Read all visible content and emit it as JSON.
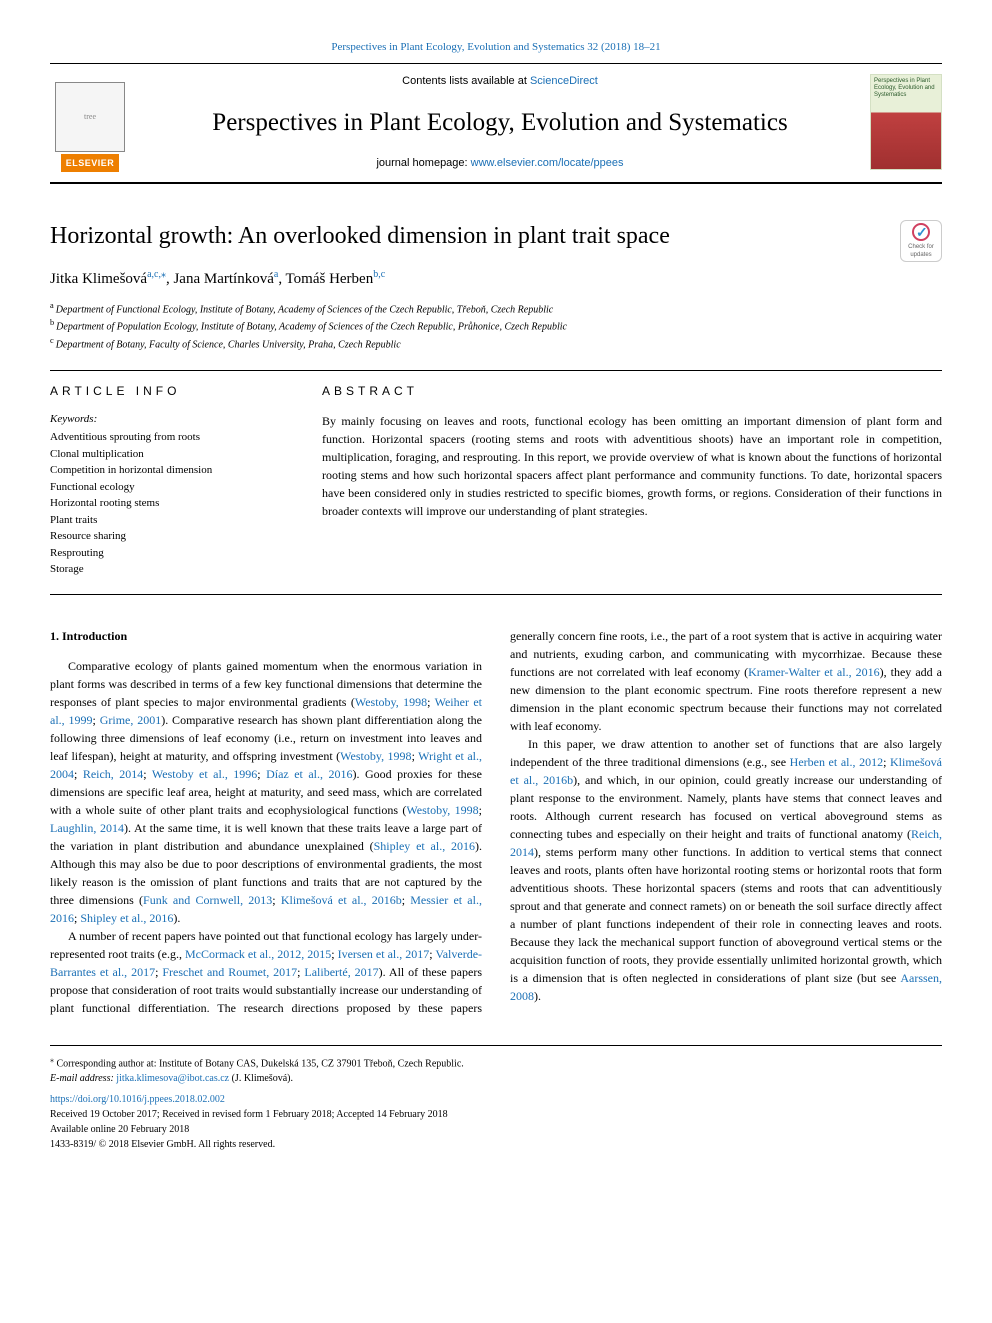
{
  "header_link": {
    "journal_issue": "Perspectives in Plant Ecology, Evolution and Systematics 32 (2018) 18–21"
  },
  "masthead": {
    "contents_prefix": "Contents lists available at ",
    "contents_link": "ScienceDirect",
    "journal_name": "Perspectives in Plant Ecology, Evolution and Systematics",
    "homepage_prefix": "journal homepage: ",
    "homepage_link": "www.elsevier.com/locate/ppees",
    "elsevier_label": "ELSEVIER",
    "cover_text": "Perspectives in Plant Ecology, Evolution and Systematics"
  },
  "article": {
    "title": "Horizontal growth: An overlooked dimension in plant trait space",
    "authors_html": "Jitka Klimešová",
    "author1": "Jitka Klimešová",
    "author1_sup": "a,c,",
    "author1_star": "⁎",
    "author2": ", Jana Martínková",
    "author2_sup": "a",
    "author3": ", Tomáš Herben",
    "author3_sup": "b,c",
    "affiliations": [
      {
        "sup": "a",
        "text": "Department of Functional Ecology, Institute of Botany, Academy of Sciences of the Czech Republic, Třeboň, Czech Republic"
      },
      {
        "sup": "b",
        "text": "Department of Population Ecology, Institute of Botany, Academy of Sciences of the Czech Republic, Průhonice, Czech Republic"
      },
      {
        "sup": "c",
        "text": "Department of Botany, Faculty of Science, Charles University, Praha, Czech Republic"
      }
    ],
    "crossmark_label": "Check for updates"
  },
  "info": {
    "heading": "ARTICLE INFO",
    "keywords_label": "Keywords:",
    "keywords": [
      "Adventitious sprouting from roots",
      "Clonal multiplication",
      "Competition in horizontal dimension",
      "Functional ecology",
      "Horizontal rooting stems",
      "Plant traits",
      "Resource sharing",
      "Resprouting",
      "Storage"
    ]
  },
  "abstract": {
    "heading": "ABSTRACT",
    "text": "By mainly focusing on leaves and roots, functional ecology has been omitting an important dimension of plant form and function. Horizontal spacers (rooting stems and roots with adventitious shoots) have an important role in competition, multiplication, foraging, and resprouting. In this report, we provide overview of what is known about the functions of horizontal rooting stems and how such horizontal spacers affect plant performance and community functions. To date, horizontal spacers have been considered only in studies restricted to specific biomes, growth forms, or regions. Consideration of their functions in broader contexts will improve our understanding of plant strategies."
  },
  "body": {
    "heading": "1. Introduction",
    "p1a": "Comparative ecology of plants gained momentum when the enormous variation in plant forms was described in terms of a few key functional dimensions that determine the responses of plant species to major environmental gradients (",
    "p1_ref1": "Westoby, 1998",
    "p1b": "; ",
    "p1_ref2": "Weiher et al., 1999",
    "p1c": "; ",
    "p1_ref3": "Grime, 2001",
    "p1d": "). Comparative research has shown plant differentiation along the following three dimensions of leaf economy (i.e., return on investment into leaves and leaf lifespan), height at maturity, and offspring investment (",
    "p1_ref4": "Westoby, 1998",
    "p1e": "; ",
    "p1_ref5": "Wright et al., 2004",
    "p1f": "; ",
    "p1_ref6": "Reich, 2014",
    "p1g": "; ",
    "p1_ref7": "Westoby et al., 1996",
    "p1h": "; ",
    "p1_ref8": "Díaz et al., 2016",
    "p1i": "). Good proxies for these dimensions are specific leaf area, height at maturity, and seed mass, which are correlated with a whole suite of other plant traits and ecophysiological functions (",
    "p1_ref9": "Westoby, 1998",
    "p1j": "; ",
    "p1_ref10": "Laughlin, 2014",
    "p1k": "). At the same time, it is well known that these traits leave a large part of the variation in plant distribution and abundance unexplained (",
    "p1_ref11": "Shipley et al., 2016",
    "p1l": "). Although this may also be due to poor descriptions of environmental gradients, the most likely reason is the omission of plant functions and traits that are not captured by the three dimensions (",
    "p1_ref12": "Funk and Cornwell, 2013",
    "p1m": "; ",
    "p1_ref13": "Klimešová et al., 2016b",
    "p1n": "; ",
    "p1_ref14": "Messier et al., 2016",
    "p1o": "; ",
    "p1_ref15": "Shipley et al., 2016",
    "p1p": ").",
    "p2a": "A number of recent papers have pointed out that functional ecology has largely under-represented root traits (e.g., ",
    "p2_ref1": "McCormack et al., 2012, 2015",
    "p2b": "; ",
    "p2_ref2": "Iversen et al., 2017",
    "p2c": "; ",
    "p2_ref3": "Valverde-Barrantes et al., 2017",
    "p2d": "; ",
    "p2_ref4": "Freschet and Roumet, 2017",
    "p2e": "; ",
    "p2_ref5": "Laliberté, 2017",
    "p2f": "). All of these papers propose that consideration of root traits would substantially increase our understanding of plant functional differentiation. The research directions proposed by these papers generally concern fine roots, i.e., the part of a root system that is active in acquiring water and nutrients, exuding carbon, and communicating with mycorrhizae. Because these functions are not correlated with leaf economy (",
    "p2_ref6": "Kramer-Walter et al., 2016",
    "p2g": "), they add a new dimension to the plant economic spectrum. Fine roots therefore represent a new dimension in the plant economic spectrum because their functions may not correlated with leaf economy.",
    "p3a": "In this paper, we draw attention to another set of functions that are also largely independent of the three traditional dimensions (e.g., see ",
    "p3_ref1": "Herben et al., 2012",
    "p3b": "; ",
    "p3_ref2": "Klimešová et al., 2016b",
    "p3c": "), and which, in our opinion, could greatly increase our understanding of plant response to the environment. Namely, plants have stems that connect leaves and roots. Although current research has focused on vertical aboveground stems as connecting tubes and especially on their height and traits of functional anatomy (",
    "p3_ref3": "Reich, 2014",
    "p3d": "), stems perform many other functions. In addition to vertical stems that connect leaves and roots, plants often have horizontal rooting stems or horizontal roots that form adventitious shoots. These horizontal spacers (stems and roots that can adventitiously sprout and that generate and connect ramets) on or beneath the soil surface directly affect a number of plant functions independent of their role in connecting leaves and roots. Because they lack the mechanical support function of aboveground vertical stems or the acquisition function of roots, they provide essentially unlimited horizontal growth, which is a dimension that is often neglected in considerations of plant size (but see ",
    "p3_ref4": "Aarssen, 2008",
    "p3e": ")."
  },
  "footer": {
    "corr_star": "⁎",
    "corr_text": " Corresponding author at: Institute of Botany CAS, Dukelská 135, CZ 37901 Třeboň, Czech Republic.",
    "email_label": "E-mail address: ",
    "email": "jitka.klimesova@ibot.cas.cz",
    "email_suffix": " (J. Klimešová).",
    "doi": "https://doi.org/10.1016/j.ppees.2018.02.002",
    "received": "Received 19 October 2017; Received in revised form 1 February 2018; Accepted 14 February 2018",
    "available": "Available online 20 February 2018",
    "copyright": "1433-8319/ © 2018 Elsevier GmbH. All rights reserved."
  }
}
